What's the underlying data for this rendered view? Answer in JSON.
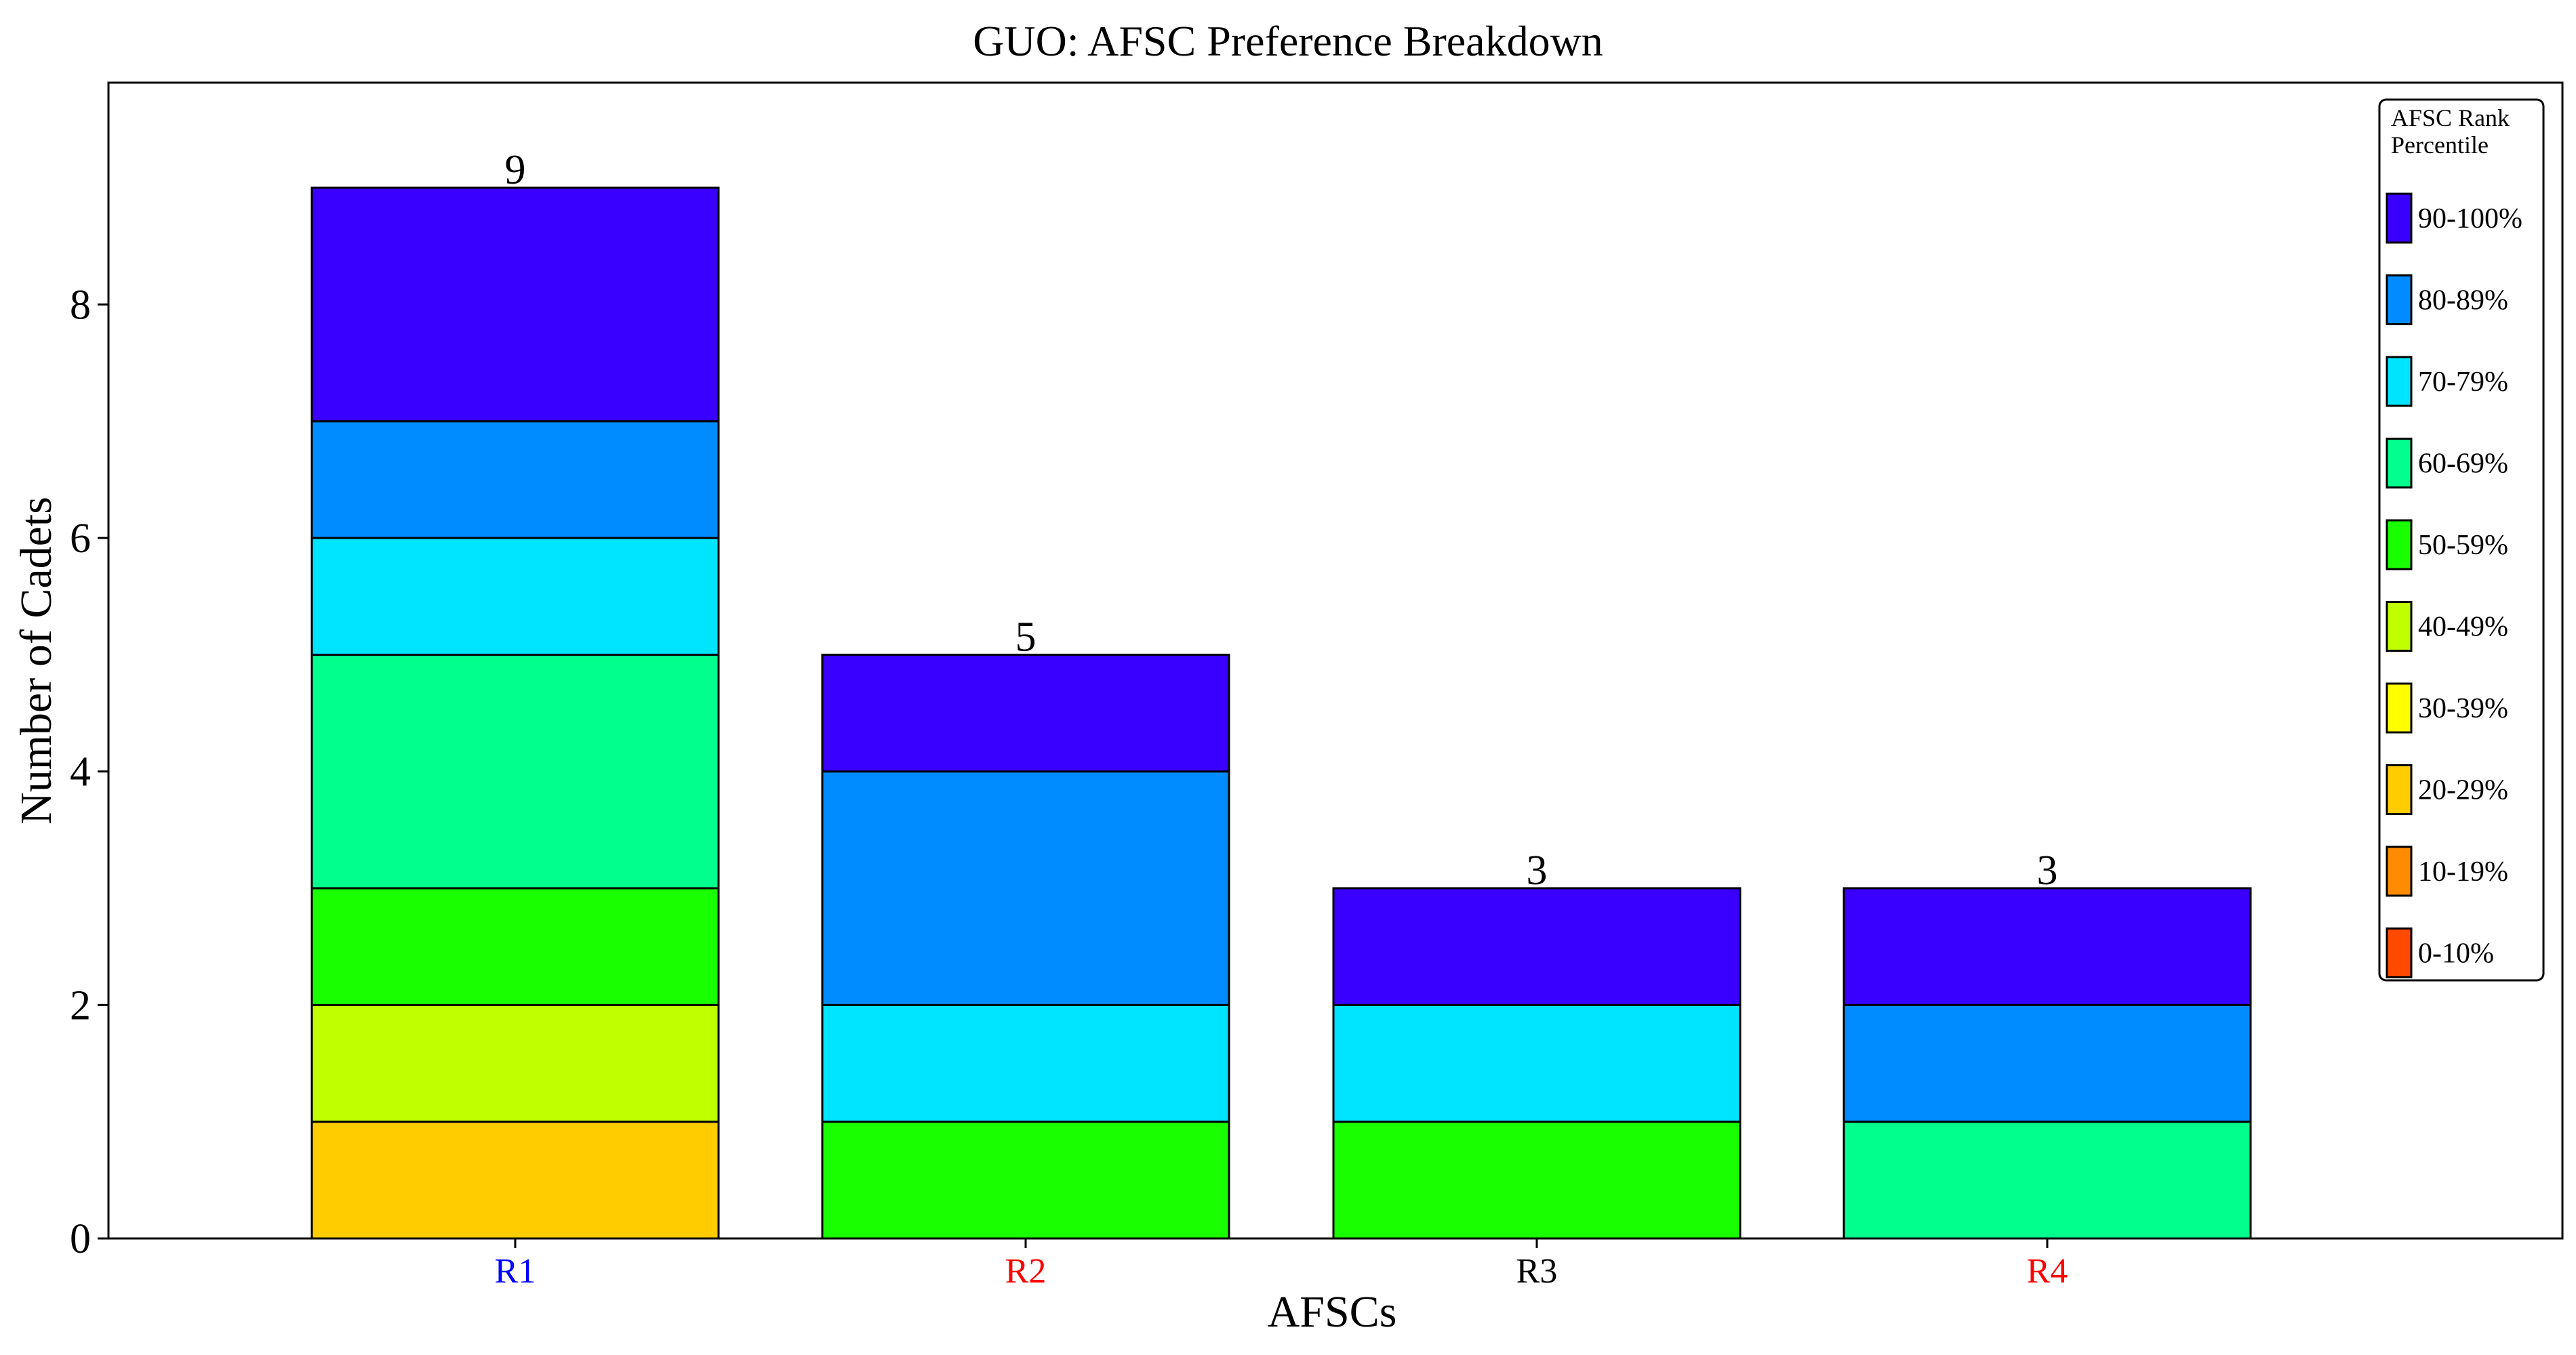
{
  "chart_data": {
    "type": "bar",
    "stacked": true,
    "title": "GUO: AFSC Preference Breakdown",
    "xlabel": "AFSCs",
    "ylabel": "Number of Cadets",
    "ylim": [
      0,
      9.9
    ],
    "yticks": [
      0,
      2,
      4,
      6,
      8
    ],
    "grid": false,
    "categories": [
      "R1",
      "R2",
      "R3",
      "R4"
    ],
    "category_colors": [
      "#0000ff",
      "#ff0000",
      "#000000",
      "#ff0000"
    ],
    "totals": [
      9,
      5,
      3,
      3
    ],
    "legend": {
      "title": "AFSC Rank\nPercentile",
      "placement": "right"
    },
    "series": [
      {
        "name": "0-10%",
        "color": "#ff4a00",
        "values": [
          0,
          0,
          0,
          0
        ]
      },
      {
        "name": "10-19%",
        "color": "#ff8c00",
        "values": [
          0,
          0,
          0,
          0
        ]
      },
      {
        "name": "20-29%",
        "color": "#ffcc00",
        "values": [
          1,
          0,
          0,
          0
        ]
      },
      {
        "name": "30-39%",
        "color": "#ffff00",
        "values": [
          0,
          0,
          0,
          0
        ]
      },
      {
        "name": "40-49%",
        "color": "#bfff00",
        "values": [
          1,
          0,
          0,
          0
        ]
      },
      {
        "name": "50-59%",
        "color": "#1aff00",
        "values": [
          1,
          1,
          1,
          0
        ]
      },
      {
        "name": "60-69%",
        "color": "#00ff8c",
        "values": [
          2,
          0,
          0,
          1
        ]
      },
      {
        "name": "70-79%",
        "color": "#00e5ff",
        "values": [
          1,
          1,
          1,
          0
        ]
      },
      {
        "name": "80-89%",
        "color": "#008cff",
        "values": [
          1,
          2,
          0,
          1
        ]
      },
      {
        "name": "90-100%",
        "color": "#3a00ff",
        "values": [
          2,
          1,
          1,
          1
        ]
      }
    ]
  }
}
